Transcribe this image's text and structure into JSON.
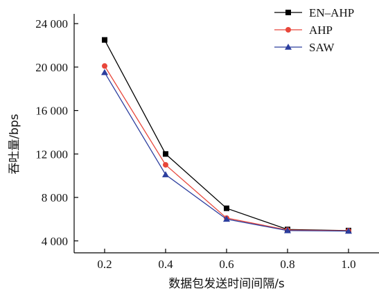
{
  "chart_data": {
    "type": "line",
    "xlabel": "数据包发送时间间隔/s",
    "ylabel": "吞吐量/bps",
    "x": [
      0.2,
      0.4,
      0.6,
      0.8,
      1.0
    ],
    "x_tick_labels": [
      "0.2",
      "0.4",
      "0.6",
      "0.8",
      "1.0"
    ],
    "xlim": [
      0.1,
      1.1
    ],
    "ylim": [
      2900,
      24900
    ],
    "y_ticks": [
      4000,
      8000,
      12000,
      16000,
      20000,
      24000
    ],
    "y_tick_labels": [
      "4 000",
      "8 000",
      "12 000",
      "16 000",
      "20 000",
      "24 000"
    ],
    "grid": false,
    "legend_position": "top-right",
    "series": [
      {
        "name": "EN–AHP",
        "marker": "square",
        "color": "#000000",
        "values": [
          22500,
          12000,
          7000,
          5050,
          4950
        ]
      },
      {
        "name": "AHP",
        "marker": "circle",
        "color": "#e8463a",
        "values": [
          20100,
          11000,
          6100,
          5000,
          4930
        ]
      },
      {
        "name": "SAW",
        "marker": "triangle",
        "color": "#2c3e9e",
        "values": [
          19500,
          10100,
          6000,
          4950,
          4900
        ]
      }
    ]
  }
}
